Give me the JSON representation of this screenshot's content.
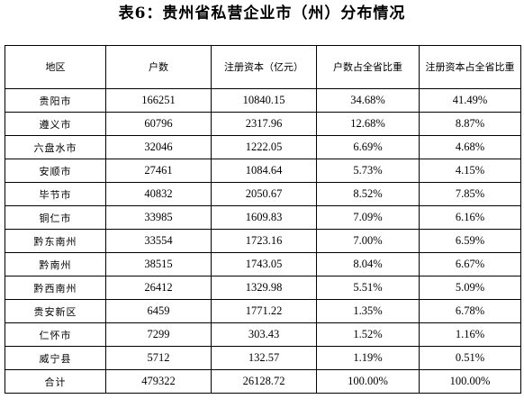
{
  "title": "表6：贵州省私营企业市（州）分布情况",
  "table": {
    "headers": [
      "地区",
      "户数",
      "注册资本（亿元）",
      "户数占全省比重",
      "注册资本占全省比重"
    ],
    "rows": [
      [
        "贵阳市",
        "166251",
        "10840.15",
        "34.68%",
        "41.49%"
      ],
      [
        "遵义市",
        "60796",
        "2317.96",
        "12.68%",
        "8.87%"
      ],
      [
        "六盘水市",
        "32046",
        "1222.05",
        "6.69%",
        "4.68%"
      ],
      [
        "安顺市",
        "27461",
        "1084.64",
        "5.73%",
        "4.15%"
      ],
      [
        "毕节市",
        "40832",
        "2050.67",
        "8.52%",
        "7.85%"
      ],
      [
        "铜仁市",
        "33985",
        "1609.83",
        "7.09%",
        "6.16%"
      ],
      [
        "黔东南州",
        "33554",
        "1723.16",
        "7.00%",
        "6.59%"
      ],
      [
        "黔南州",
        "38515",
        "1743.05",
        "8.04%",
        "6.67%"
      ],
      [
        "黔西南州",
        "26412",
        "1329.98",
        "5.51%",
        "5.09%"
      ],
      [
        "贵安新区",
        "6459",
        "1771.22",
        "1.35%",
        "6.78%"
      ],
      [
        "仁怀市",
        "7299",
        "303.43",
        "1.52%",
        "1.16%"
      ],
      [
        "威宁县",
        "5712",
        "132.57",
        "1.19%",
        "0.51%"
      ],
      [
        "合计",
        "479322",
        "26128.72",
        "100.00%",
        "100.00%"
      ]
    ]
  }
}
